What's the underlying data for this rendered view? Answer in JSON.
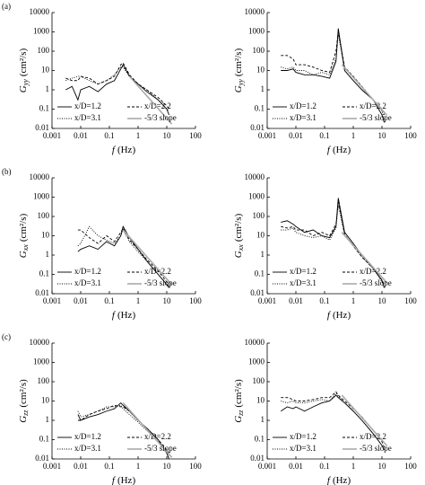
{
  "chart_data": [
    {
      "type": "line",
      "panel_label": "(a)",
      "ylabel_symbol": "G",
      "ylabel_subscript": "yy",
      "ylabel_unit": "(cm²/s)",
      "xlabel_symbol": "f",
      "xlabel_unit": "(Hz)",
      "log_x": true,
      "log_y": true,
      "xlim": [
        0.001,
        100
      ],
      "ylim": [
        0.01,
        10000
      ],
      "xticks": [
        0.001,
        0.01,
        0.1,
        1,
        10,
        100
      ],
      "yticks": [
        0.01,
        0.1,
        1,
        10,
        100,
        1000,
        10000
      ],
      "series": [
        {
          "name": "x/D=1.2",
          "color": "#000000",
          "line_style": "solid",
          "x": [
            0.003,
            0.005,
            0.008,
            0.01,
            0.02,
            0.04,
            0.08,
            0.15,
            0.25,
            0.3,
            0.5,
            1,
            2,
            5,
            10,
            12
          ],
          "values": [
            1,
            1.5,
            0.3,
            1,
            1.5,
            0.8,
            2,
            3,
            12,
            20,
            5,
            2,
            0.8,
            0.3,
            0.1,
            0.05
          ]
        },
        {
          "name": "x/D=2.2",
          "color": "#000000",
          "line_style": "dashed",
          "x": [
            0.003,
            0.005,
            0.008,
            0.01,
            0.02,
            0.04,
            0.08,
            0.15,
            0.25,
            0.3,
            0.5,
            1,
            2,
            5,
            10,
            12
          ],
          "values": [
            4,
            3,
            3,
            5,
            4,
            2,
            3,
            5,
            20,
            25,
            6,
            2,
            1,
            0.4,
            0.15,
            0.1
          ]
        },
        {
          "name": "x/D=3.1",
          "color": "#000000",
          "line_style": "dotted",
          "x": [
            0.003,
            0.005,
            0.008,
            0.01,
            0.02,
            0.04,
            0.08,
            0.15,
            0.25,
            0.3,
            0.5,
            1,
            2,
            5,
            10,
            12
          ],
          "values": [
            3,
            4,
            5,
            5,
            3,
            2,
            3,
            6,
            15,
            15,
            5,
            2,
            1,
            0.3,
            0.1,
            0.08
          ]
        },
        {
          "name": "-5/3 slope",
          "color": "#aaaaaa",
          "line_style": "solid",
          "x": [
            0.5,
            15
          ],
          "values": [
            5,
            0.017
          ]
        }
      ]
    },
    {
      "type": "line",
      "ylabel_symbol": "G",
      "ylabel_subscript": "yy",
      "ylabel_unit": "(cm²/s)",
      "xlabel_symbol": "f",
      "xlabel_unit": "(Hz)",
      "log_x": true,
      "log_y": true,
      "xlim": [
        0.001,
        100
      ],
      "ylim": [
        0.01,
        10000
      ],
      "xticks": [
        0.001,
        0.01,
        0.1,
        1,
        10,
        100
      ],
      "yticks": [
        0.01,
        0.1,
        1,
        10,
        100,
        1000,
        10000
      ],
      "series": [
        {
          "name": "x/D=1.2",
          "color": "#000000",
          "line_style": "solid",
          "x": [
            0.003,
            0.005,
            0.008,
            0.01,
            0.02,
            0.04,
            0.08,
            0.15,
            0.25,
            0.3,
            0.5,
            1,
            2,
            5,
            10,
            12
          ],
          "values": [
            10,
            10,
            12,
            8,
            6,
            6,
            5,
            4,
            30,
            1500,
            10,
            3,
            1,
            0.3,
            0.05,
            0.02
          ]
        },
        {
          "name": "x/D=2.2",
          "color": "#000000",
          "line_style": "dashed",
          "x": [
            0.003,
            0.005,
            0.008,
            0.01,
            0.02,
            0.04,
            0.08,
            0.15,
            0.25,
            0.3,
            0.5,
            1,
            2,
            5,
            10,
            12
          ],
          "values": [
            60,
            60,
            40,
            20,
            20,
            15,
            10,
            8,
            100,
            1000,
            15,
            5,
            1.5,
            0.3,
            0.1,
            0.05
          ]
        },
        {
          "name": "x/D=3.1",
          "color": "#000000",
          "line_style": "dotted",
          "x": [
            0.003,
            0.005,
            0.008,
            0.01,
            0.02,
            0.04,
            0.08,
            0.15,
            0.25,
            0.3,
            0.5,
            1,
            2,
            5,
            10,
            12
          ],
          "values": [
            15,
            12,
            15,
            10,
            10,
            6,
            8,
            6,
            40,
            800,
            10,
            3,
            1,
            0.3,
            0.08,
            0.03
          ]
        },
        {
          "name": "-5/3 slope",
          "color": "#aaaaaa",
          "line_style": "solid",
          "x": [
            0.4,
            15
          ],
          "values": [
            20,
            0.048
          ]
        }
      ]
    },
    {
      "type": "line",
      "panel_label": "(b)",
      "ylabel_symbol": "G",
      "ylabel_subscript": "xx",
      "ylabel_unit": "(cm²/s)",
      "xlabel_symbol": "f",
      "xlabel_unit": "(Hz)",
      "log_x": true,
      "log_y": true,
      "xlim": [
        0.001,
        100
      ],
      "ylim": [
        0.01,
        10000
      ],
      "xticks": [
        0.001,
        0.01,
        0.1,
        1,
        10,
        100
      ],
      "yticks": [
        0.01,
        0.1,
        1,
        10,
        100,
        1000,
        10000
      ],
      "series": [
        {
          "name": "x/D=1.2",
          "color": "#000000",
          "line_style": "solid",
          "x": [
            0.008,
            0.01,
            0.02,
            0.04,
            0.08,
            0.15,
            0.25,
            0.3,
            0.5,
            1,
            2,
            5,
            10,
            12
          ],
          "values": [
            1.5,
            2,
            3,
            2,
            5,
            3,
            10,
            30,
            8,
            2,
            0.5,
            0.1,
            0.03,
            0.02
          ]
        },
        {
          "name": "x/D=2.2",
          "color": "#000000",
          "line_style": "dashed",
          "x": [
            0.008,
            0.01,
            0.02,
            0.04,
            0.08,
            0.15,
            0.25,
            0.3,
            0.5,
            1,
            2,
            5,
            10,
            12
          ],
          "values": [
            20,
            20,
            8,
            4,
            10,
            5,
            15,
            25,
            6,
            2,
            0.6,
            0.15,
            0.04,
            0.02
          ]
        },
        {
          "name": "x/D=3.1",
          "color": "#000000",
          "line_style": "dotted",
          "x": [
            0.008,
            0.01,
            0.02,
            0.04,
            0.08,
            0.15,
            0.25,
            0.3,
            0.5,
            1,
            2,
            5,
            10,
            12
          ],
          "values": [
            3,
            4,
            30,
            10,
            6,
            4,
            10,
            20,
            5,
            1.5,
            0.5,
            0.1,
            0.03,
            0.02
          ]
        },
        {
          "name": "-5/3 slope",
          "color": "#aaaaaa",
          "line_style": "solid",
          "x": [
            0.3,
            15
          ],
          "values": [
            20,
            0.029
          ]
        }
      ]
    },
    {
      "type": "line",
      "ylabel_symbol": "G",
      "ylabel_subscript": "xx",
      "ylabel_unit": "(cm²/s)",
      "xlabel_symbol": "f",
      "xlabel_unit": "(Hz)",
      "log_x": true,
      "log_y": true,
      "xlim": [
        0.001,
        100
      ],
      "ylim": [
        0.01,
        10000
      ],
      "xticks": [
        0.001,
        0.01,
        0.1,
        1,
        10,
        100
      ],
      "yticks": [
        0.01,
        0.1,
        1,
        10,
        100,
        1000,
        10000
      ],
      "series": [
        {
          "name": "x/D=1.2",
          "color": "#000000",
          "line_style": "solid",
          "x": [
            0.003,
            0.005,
            0.008,
            0.01,
            0.02,
            0.04,
            0.08,
            0.15,
            0.25,
            0.3,
            0.5,
            1,
            2,
            5,
            10,
            12
          ],
          "values": [
            50,
            60,
            40,
            30,
            15,
            20,
            10,
            8,
            30,
            900,
            15,
            4,
            1,
            0.2,
            0.05,
            0.02
          ]
        },
        {
          "name": "x/D=2.2",
          "color": "#000000",
          "line_style": "dashed",
          "x": [
            0.003,
            0.005,
            0.008,
            0.01,
            0.02,
            0.04,
            0.08,
            0.15,
            0.25,
            0.3,
            0.5,
            1,
            2,
            5,
            10,
            12
          ],
          "values": [
            30,
            25,
            30,
            20,
            20,
            10,
            15,
            10,
            40,
            600,
            12,
            3,
            0.8,
            0.2,
            0.05,
            0.03
          ]
        },
        {
          "name": "x/D=3.1",
          "color": "#000000",
          "line_style": "dotted",
          "x": [
            0.003,
            0.005,
            0.008,
            0.01,
            0.02,
            0.04,
            0.08,
            0.15,
            0.25,
            0.3,
            0.5,
            1,
            2,
            5,
            10,
            12
          ],
          "values": [
            20,
            20,
            25,
            15,
            10,
            8,
            10,
            6,
            25,
            400,
            10,
            3,
            0.8,
            0.2,
            0.04,
            0.02
          ]
        },
        {
          "name": "-5/3 slope",
          "color": "#aaaaaa",
          "line_style": "solid",
          "x": [
            0.4,
            15
          ],
          "values": [
            15,
            0.036
          ]
        }
      ]
    },
    {
      "type": "line",
      "panel_label": "(c)",
      "ylabel_symbol": "G",
      "ylabel_subscript": "zz",
      "ylabel_unit": "(cm²/s)",
      "xlabel_symbol": "f",
      "xlabel_unit": "(Hz)",
      "log_x": true,
      "log_y": true,
      "xlim": [
        0.001,
        100
      ],
      "ylim": [
        0.01,
        10000
      ],
      "xticks": [
        0.001,
        0.01,
        0.1,
        1,
        10,
        100
      ],
      "yticks": [
        0.01,
        0.1,
        1,
        10,
        100,
        1000,
        10000
      ],
      "series": [
        {
          "name": "x/D=1.2",
          "color": "#000000",
          "line_style": "solid",
          "x": [
            0.008,
            0.01,
            0.02,
            0.04,
            0.08,
            0.15,
            0.25,
            0.3,
            0.5,
            1,
            2,
            5,
            10,
            12
          ],
          "values": [
            2,
            1,
            1.5,
            2,
            3,
            4,
            8,
            6,
            3,
            1,
            0.4,
            0.1,
            0.02,
            0.01
          ]
        },
        {
          "name": "x/D=2.2",
          "color": "#000000",
          "line_style": "dashed",
          "x": [
            0.008,
            0.01,
            0.02,
            0.04,
            0.08,
            0.15,
            0.25,
            0.3,
            0.5,
            1,
            2,
            5,
            10,
            12
          ],
          "values": [
            1,
            1,
            2,
            3,
            4,
            6,
            5,
            5,
            3,
            1,
            0.4,
            0.1,
            0.03,
            0.02
          ]
        },
        {
          "name": "x/D=3.1",
          "color": "#000000",
          "line_style": "dotted",
          "x": [
            0.008,
            0.01,
            0.02,
            0.04,
            0.08,
            0.15,
            0.25,
            0.3,
            0.5,
            1,
            2,
            5,
            10,
            12
          ],
          "values": [
            3,
            1.5,
            2,
            3,
            5,
            5,
            6,
            4,
            2,
            0.8,
            0.3,
            0.08,
            0.02,
            0.01
          ]
        },
        {
          "name": "-5/3 slope",
          "color": "#aaaaaa",
          "line_style": "solid",
          "x": [
            0.3,
            15
          ],
          "values": [
            8,
            0.012
          ]
        }
      ]
    },
    {
      "type": "line",
      "ylabel_symbol": "G",
      "ylabel_subscript": "zz",
      "ylabel_unit": "(cm²/s)",
      "xlabel_symbol": "f",
      "xlabel_unit": "(Hz)",
      "log_x": true,
      "log_y": true,
      "xlim": [
        0.001,
        100
      ],
      "ylim": [
        0.01,
        10000
      ],
      "xticks": [
        0.001,
        0.01,
        0.1,
        1,
        10,
        100
      ],
      "yticks": [
        0.01,
        0.1,
        1,
        10,
        100,
        1000,
        10000
      ],
      "series": [
        {
          "name": "x/D=1.2",
          "color": "#000000",
          "line_style": "solid",
          "x": [
            0.003,
            0.005,
            0.008,
            0.01,
            0.02,
            0.04,
            0.08,
            0.15,
            0.25,
            0.3,
            0.5,
            1,
            2,
            5,
            10,
            12
          ],
          "values": [
            3,
            5,
            4,
            5,
            3,
            5,
            8,
            10,
            20,
            15,
            8,
            3,
            1,
            0.2,
            0.05,
            0.03
          ]
        },
        {
          "name": "x/D=2.2",
          "color": "#000000",
          "line_style": "dashed",
          "x": [
            0.003,
            0.005,
            0.008,
            0.01,
            0.02,
            0.04,
            0.08,
            0.15,
            0.25,
            0.3,
            0.5,
            1,
            2,
            5,
            10,
            12
          ],
          "values": [
            15,
            15,
            12,
            10,
            10,
            12,
            15,
            15,
            30,
            20,
            10,
            4,
            1.5,
            0.3,
            0.08,
            0.04
          ]
        },
        {
          "name": "x/D=3.1",
          "color": "#000000",
          "line_style": "dotted",
          "x": [
            0.003,
            0.005,
            0.008,
            0.01,
            0.02,
            0.04,
            0.08,
            0.15,
            0.25,
            0.3,
            0.5,
            1,
            2,
            5,
            10,
            12
          ],
          "values": [
            10,
            8,
            10,
            8,
            8,
            10,
            12,
            10,
            25,
            18,
            8,
            3,
            1,
            0.2,
            0.05,
            0.03
          ]
        },
        {
          "name": "-5/3 slope",
          "color": "#aaaaaa",
          "line_style": "solid",
          "x": [
            0.4,
            15
          ],
          "values": [
            20,
            0.048
          ]
        }
      ]
    }
  ]
}
